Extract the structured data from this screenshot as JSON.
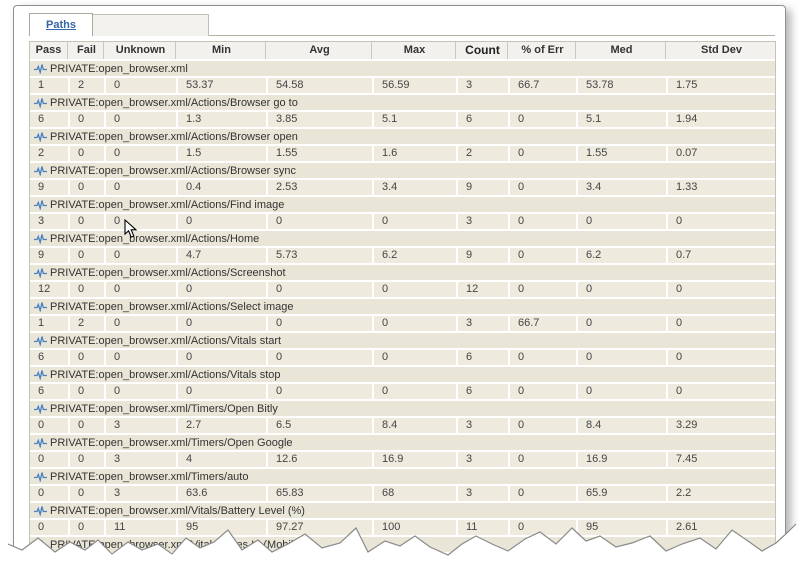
{
  "tab": {
    "label": "Paths"
  },
  "table": {
    "columns": [
      "Pass",
      "Fail",
      "Unknown",
      "Min",
      "Avg",
      "Max",
      "Count",
      "% of Err",
      "Med",
      "Std Dev"
    ],
    "sorted_column": "Count",
    "groups": [
      {
        "path": "PRIVATE:open_browser.xml",
        "values": [
          "1",
          "2",
          "0",
          "53.37",
          "54.58",
          "56.59",
          "3",
          "66.7",
          "53.78",
          "1.75"
        ]
      },
      {
        "path": "PRIVATE:open_browser.xml/Actions/Browser go to",
        "values": [
          "6",
          "0",
          "0",
          "1.3",
          "3.85",
          "5.1",
          "6",
          "0",
          "5.1",
          "1.94"
        ]
      },
      {
        "path": "PRIVATE:open_browser.xml/Actions/Browser open",
        "values": [
          "2",
          "0",
          "0",
          "1.5",
          "1.55",
          "1.6",
          "2",
          "0",
          "1.55",
          "0.07"
        ]
      },
      {
        "path": "PRIVATE:open_browser.xml/Actions/Browser sync",
        "values": [
          "9",
          "0",
          "0",
          "0.4",
          "2.53",
          "3.4",
          "9",
          "0",
          "3.4",
          "1.33"
        ]
      },
      {
        "path": "PRIVATE:open_browser.xml/Actions/Find image",
        "values": [
          "3",
          "0",
          "0",
          "0",
          "0",
          "0",
          "3",
          "0",
          "0",
          "0"
        ]
      },
      {
        "path": "PRIVATE:open_browser.xml/Actions/Home",
        "values": [
          "9",
          "0",
          "0",
          "4.7",
          "5.73",
          "6.2",
          "9",
          "0",
          "6.2",
          "0.7"
        ]
      },
      {
        "path": "PRIVATE:open_browser.xml/Actions/Screenshot",
        "values": [
          "12",
          "0",
          "0",
          "0",
          "0",
          "0",
          "12",
          "0",
          "0",
          "0"
        ]
      },
      {
        "path": "PRIVATE:open_browser.xml/Actions/Select image",
        "values": [
          "1",
          "2",
          "0",
          "0",
          "0",
          "0",
          "3",
          "66.7",
          "0",
          "0"
        ]
      },
      {
        "path": "PRIVATE:open_browser.xml/Actions/Vitals start",
        "values": [
          "6",
          "0",
          "0",
          "0",
          "0",
          "0",
          "6",
          "0",
          "0",
          "0"
        ]
      },
      {
        "path": "PRIVATE:open_browser.xml/Actions/Vitals stop",
        "values": [
          "6",
          "0",
          "0",
          "0",
          "0",
          "0",
          "6",
          "0",
          "0",
          "0"
        ]
      },
      {
        "path": "PRIVATE:open_browser.xml/Timers/Open Bitly",
        "values": [
          "0",
          "0",
          "3",
          "2.7",
          "6.5",
          "8.4",
          "3",
          "0",
          "8.4",
          "3.29"
        ]
      },
      {
        "path": "PRIVATE:open_browser.xml/Timers/Open Google",
        "values": [
          "0",
          "0",
          "3",
          "4",
          "12.6",
          "16.9",
          "3",
          "0",
          "16.9",
          "7.45"
        ]
      },
      {
        "path": "PRIVATE:open_browser.xml/Timers/auto",
        "values": [
          "0",
          "0",
          "3",
          "63.6",
          "65.83",
          "68",
          "3",
          "0",
          "65.9",
          "2.2"
        ]
      },
      {
        "path": "PRIVATE:open_browser.xml/Vitals/Battery Level (%)",
        "values": [
          "0",
          "0",
          "11",
          "95",
          "97.27",
          "100",
          "11",
          "0",
          "95",
          "2.61"
        ]
      },
      {
        "path": "PRIVATE:open_browser.xml/Vitals/Bytes In (Mobile)",
        "values": null
      }
    ],
    "row_icon": "waveform-icon"
  },
  "colors": {
    "tab_link": "#3566a7",
    "header_bg": "#f2f1ee",
    "group_row_bg": "#e9e6d7",
    "data_row_bg": "#eeebde",
    "icon_blue": "#4a7fc1"
  }
}
